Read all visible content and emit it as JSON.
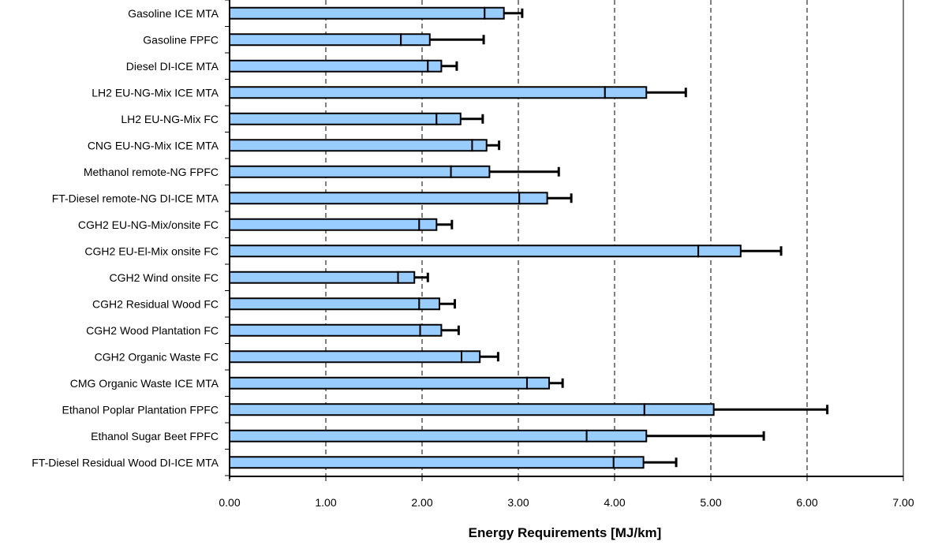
{
  "chart_data": {
    "type": "bar",
    "orientation": "horizontal",
    "categories": [
      "Gasoline ICE MTA",
      "Gasoline FPFC",
      "Diesel DI-ICE MTA",
      "LH2 EU-NG-Mix ICE MTA",
      "LH2 EU-NG-Mix FC",
      "CNG EU-NG-Mix ICE MTA",
      "Methanol remote-NG FPFC",
      "FT-Diesel remote-NG DI-ICE MTA",
      "CGH2 EU-NG-Mix/onsite FC",
      "CGH2 EU-El-Mix onsite FC",
      "CGH2 Wind onsite FC",
      "CGH2 Residual Wood FC",
      "CGH2 Wood Plantation FC",
      "CGH2 Organic Waste FC",
      "CMG Organic Waste ICE MTA",
      "Ethanol Poplar Plantation FPFC",
      "Ethanol Sugar Beet FPFC",
      "FT-Diesel Residual Wood DI-ICE MTA"
    ],
    "series": [
      {
        "values": [
          2.65,
          1.78,
          2.06,
          3.9,
          2.15,
          2.52,
          2.3,
          3.01,
          1.97,
          4.87,
          1.75,
          1.97,
          1.98,
          2.41,
          3.09,
          4.31,
          3.71,
          3.99
        ]
      }
    ],
    "range_upper": [
      2.85,
      2.08,
      2.2,
      4.33,
      2.4,
      2.67,
      2.7,
      3.3,
      2.15,
      5.31,
      1.92,
      2.18,
      2.2,
      2.6,
      3.32,
      5.03,
      4.33,
      4.3
    ],
    "error_max": [
      3.04,
      2.64,
      2.36,
      4.74,
      2.63,
      2.8,
      3.42,
      3.55,
      2.31,
      5.73,
      2.06,
      2.34,
      2.38,
      2.79,
      3.46,
      6.21,
      5.55,
      4.64
    ],
    "xlabel": "Energy Requirements [MJ/km]",
    "ylabel": "",
    "xlim": [
      0,
      7
    ],
    "xticks": [
      "0.00",
      "1.00",
      "2.00",
      "3.00",
      "4.00",
      "5.00",
      "6.00",
      "7.00"
    ],
    "gridlines": [
      1,
      2,
      3,
      4,
      5,
      6
    ],
    "grid_style": "dashed",
    "colors": {
      "bar": "#99ccff",
      "range_box": "#99ccff",
      "outline": "#000000",
      "error_bar": "#000000",
      "frame": "#808080"
    }
  }
}
